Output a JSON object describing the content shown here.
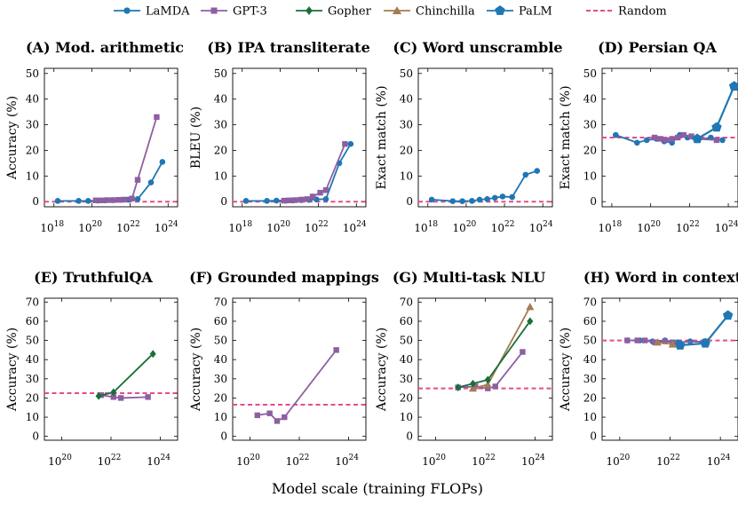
{
  "figure": {
    "xlabel": "Model scale (training FLOPs)",
    "colors": {
      "LaMDA": "#1f77b4",
      "GPT-3": "#8e5ea2",
      "Gopher": "#1a6e3a",
      "Chinchilla": "#a67c52",
      "PaLM": "#1f77b4",
      "Random": "#e84a8a"
    },
    "legend": [
      {
        "name": "LaMDA",
        "marker": "circle"
      },
      {
        "name": "GPT-3",
        "marker": "square"
      },
      {
        "name": "Gopher",
        "marker": "diamond"
      },
      {
        "name": "Chinchilla",
        "marker": "triangle"
      },
      {
        "name": "PaLM",
        "marker": "pentagon"
      },
      {
        "name": "Random",
        "marker": "dash"
      }
    ]
  },
  "chart_data": [
    {
      "type": "line",
      "title": "(A) Mod. arithmetic",
      "ylabel": "Accuracy (%)",
      "xlog": true,
      "xlim": [
        17.5,
        24.5
      ],
      "xticks": [
        18,
        20,
        22,
        24
      ],
      "xtick_labels": [
        "10",
        "10",
        "10",
        "10"
      ],
      "xtick_exps": [
        "18",
        "20",
        "22",
        "24"
      ],
      "ylim": [
        -2,
        52
      ],
      "yticks": [
        0,
        10,
        20,
        30,
        40,
        50
      ],
      "ytick_labels": [
        "0",
        "10",
        "20",
        "30",
        "40",
        "50"
      ],
      "random": 0,
      "series": [
        {
          "name": "LaMDA",
          "x_log10": [
            18.2,
            19.3,
            19.8,
            20.3,
            20.7,
            21.1,
            21.5,
            21.9,
            22.4,
            23.1,
            23.7
          ],
          "y": [
            0.3,
            0.3,
            0.3,
            0.4,
            0.5,
            0.6,
            0.7,
            0.8,
            1.0,
            7.5,
            15.5
          ]
        },
        {
          "name": "GPT-3",
          "x_log10": [
            20.2,
            20.5,
            20.8,
            21.1,
            21.4,
            21.7,
            22.1,
            22.4,
            23.4
          ],
          "y": [
            0.5,
            0.5,
            0.6,
            0.6,
            0.7,
            0.8,
            1.2,
            8.5,
            33
          ]
        }
      ]
    },
    {
      "type": "line",
      "title": "(B) IPA transliterate",
      "ylabel": "BLEU (%)",
      "xlog": true,
      "xlim": [
        17.5,
        24.5
      ],
      "xticks": [
        18,
        20,
        22,
        24
      ],
      "xtick_labels": [
        "10",
        "10",
        "10",
        "10"
      ],
      "xtick_exps": [
        "18",
        "20",
        "22",
        "24"
      ],
      "ylim": [
        -2,
        52
      ],
      "yticks": [
        0,
        10,
        20,
        30,
        40,
        50
      ],
      "ytick_labels": [
        "0",
        "10",
        "20",
        "30",
        "40",
        "50"
      ],
      "random": 0,
      "series": [
        {
          "name": "LaMDA",
          "x_log10": [
            18.2,
            19.3,
            19.8,
            20.3,
            20.7,
            21.1,
            21.5,
            21.9,
            22.4,
            23.1,
            23.7
          ],
          "y": [
            0.3,
            0.3,
            0.4,
            0.4,
            0.5,
            0.6,
            0.7,
            0.9,
            1.0,
            15.0,
            22.5
          ]
        },
        {
          "name": "GPT-3",
          "x_log10": [
            20.2,
            20.5,
            20.8,
            21.1,
            21.4,
            21.7,
            22.1,
            22.4,
            23.4
          ],
          "y": [
            0.4,
            0.5,
            0.6,
            0.8,
            1.0,
            2.0,
            3.5,
            4.5,
            22.5
          ]
        }
      ]
    },
    {
      "type": "line",
      "title": "(C) Word unscramble",
      "ylabel": "Exact match (%)",
      "xlog": true,
      "xlim": [
        17.5,
        24.5
      ],
      "xticks": [
        18,
        20,
        22,
        24
      ],
      "xtick_labels": [
        "10",
        "10",
        "10",
        "10"
      ],
      "xtick_exps": [
        "18",
        "20",
        "22",
        "24"
      ],
      "ylim": [
        -2,
        52
      ],
      "yticks": [
        0,
        10,
        20,
        30,
        40,
        50
      ],
      "ytick_labels": [
        "0",
        "10",
        "20",
        "30",
        "40",
        "50"
      ],
      "random": 0,
      "series": [
        {
          "name": "LaMDA",
          "x_log10": [
            18.2,
            19.3,
            19.8,
            20.3,
            20.7,
            21.1,
            21.5,
            21.9,
            22.4,
            23.1,
            23.7
          ],
          "y": [
            0.8,
            0.2,
            0.2,
            0.3,
            0.8,
            1.0,
            1.5,
            2.0,
            1.8,
            10.5,
            12.0
          ]
        }
      ]
    },
    {
      "type": "line",
      "title": "(D) Persian QA",
      "ylabel": "Exact match (%)",
      "xlog": true,
      "xlim": [
        17.5,
        24.5
      ],
      "xticks": [
        18,
        20,
        22,
        24
      ],
      "xtick_labels": [
        "10",
        "10",
        "10",
        "10"
      ],
      "xtick_exps": [
        "18",
        "20",
        "22",
        "24"
      ],
      "ylim": [
        -2,
        52
      ],
      "yticks": [
        0,
        10,
        20,
        30,
        40,
        50
      ],
      "ytick_labels": [
        "0",
        "10",
        "20",
        "30",
        "40",
        "50"
      ],
      "random": 25,
      "series": [
        {
          "name": "LaMDA",
          "x_log10": [
            18.2,
            19.3,
            19.8,
            20.3,
            20.7,
            21.1,
            21.5,
            21.9,
            22.4,
            23.1,
            23.7
          ],
          "y": [
            26.0,
            23.0,
            24.0,
            24.5,
            23.5,
            23.0,
            26.0,
            25.0,
            24.0,
            25.0,
            24.0
          ]
        },
        {
          "name": "GPT-3",
          "x_log10": [
            20.2,
            20.5,
            20.8,
            21.1,
            21.4,
            21.7,
            22.1,
            22.4,
            23.4
          ],
          "y": [
            25.0,
            24.5,
            24.0,
            24.5,
            25.0,
            26.0,
            25.5,
            24.5,
            24.0
          ]
        },
        {
          "name": "PaLM",
          "x_log10": [
            22.4,
            23.4,
            24.3
          ],
          "y": [
            24.5,
            29.0,
            45.0
          ]
        }
      ]
    },
    {
      "type": "line",
      "title": "(E) TruthfulQA",
      "ylabel": "Accuracy (%)",
      "xlog": true,
      "xlim": [
        19.3,
        24.7
      ],
      "xticks": [
        20,
        22,
        24
      ],
      "xtick_labels": [
        "10",
        "10",
        "10"
      ],
      "xtick_exps": [
        "20",
        "22",
        "24"
      ],
      "ylim": [
        -2,
        72
      ],
      "yticks": [
        0,
        10,
        20,
        30,
        40,
        50,
        60,
        70
      ],
      "ytick_labels": [
        "0",
        "10",
        "20",
        "30",
        "40",
        "50",
        "60",
        "70"
      ],
      "random": 22.5,
      "series": [
        {
          "name": "GPT-3",
          "x_log10": [
            21.6,
            22.1,
            22.4,
            23.5
          ],
          "y": [
            21.5,
            20.5,
            20.0,
            20.5
          ]
        },
        {
          "name": "Gopher",
          "x_log10": [
            21.5,
            22.1,
            23.7
          ],
          "y": [
            21.0,
            23.0,
            43.0
          ]
        }
      ]
    },
    {
      "type": "line",
      "title": "(F) Grounded mappings",
      "ylabel": "Accuracy (%)",
      "xlog": true,
      "xlim": [
        19.3,
        24.7
      ],
      "xticks": [
        20,
        22,
        24
      ],
      "xtick_labels": [
        "10",
        "10",
        "10"
      ],
      "xtick_exps": [
        "20",
        "22",
        "24"
      ],
      "ylim": [
        -2,
        72
      ],
      "yticks": [
        0,
        10,
        20,
        30,
        40,
        50,
        60,
        70
      ],
      "ytick_labels": [
        "0",
        "10",
        "20",
        "30",
        "40",
        "50",
        "60",
        "70"
      ],
      "random": 16.5,
      "series": [
        {
          "name": "GPT-3",
          "x_log10": [
            20.3,
            20.8,
            21.1,
            21.4,
            23.5
          ],
          "y": [
            11.0,
            12.0,
            8.0,
            10.0,
            45.0
          ]
        }
      ]
    },
    {
      "type": "line",
      "title": "(G) Multi-task NLU",
      "ylabel": "Accuracy (%)",
      "xlog": true,
      "xlim": [
        19.3,
        24.7
      ],
      "xticks": [
        20,
        22,
        24
      ],
      "xtick_labels": [
        "10",
        "10",
        "10"
      ],
      "xtick_exps": [
        "20",
        "22",
        "24"
      ],
      "ylim": [
        -2,
        72
      ],
      "yticks": [
        0,
        10,
        20,
        30,
        40,
        50,
        60,
        70
      ],
      "ytick_labels": [
        "0",
        "10",
        "20",
        "30",
        "40",
        "50",
        "60",
        "70"
      ],
      "random": 25,
      "series": [
        {
          "name": "GPT-3",
          "x_log10": [
            20.9,
            21.6,
            22.1,
            22.4,
            23.5
          ],
          "y": [
            25.5,
            26.0,
            25.0,
            26.0,
            44.0
          ]
        },
        {
          "name": "Chinchilla",
          "x_log10": [
            21.5,
            22.1,
            23.8
          ],
          "y": [
            25.0,
            27.0,
            67.5
          ]
        },
        {
          "name": "Gopher",
          "x_log10": [
            20.9,
            21.5,
            22.1,
            23.8
          ],
          "y": [
            25.5,
            27.5,
            29.5,
            60.0
          ]
        }
      ]
    },
    {
      "type": "line",
      "title": "(H) Word in context",
      "ylabel": "Accuracy (%)",
      "xlog": true,
      "xlim": [
        19.3,
        24.7
      ],
      "xticks": [
        20,
        22,
        24
      ],
      "xtick_labels": [
        "10",
        "10",
        "10"
      ],
      "xtick_exps": [
        "20",
        "22",
        "24"
      ],
      "ylim": [
        -2,
        72
      ],
      "yticks": [
        0,
        10,
        20,
        30,
        40,
        50,
        60,
        70
      ],
      "ytick_labels": [
        "0",
        "10",
        "20",
        "30",
        "40",
        "50",
        "60",
        "70"
      ],
      "random": 50,
      "series": [
        {
          "name": "LaMDA",
          "x_log10": [
            20.3,
            20.8,
            21.3,
            21.8,
            22.3,
            22.8,
            23.4
          ],
          "y": [
            50.0,
            50.0,
            49.5,
            50.0,
            49.0,
            49.5,
            49.0
          ]
        },
        {
          "name": "GPT-3",
          "x_log10": [
            20.3,
            20.7,
            21.0,
            21.4,
            21.8,
            22.1,
            23.4
          ],
          "y": [
            50.0,
            50.0,
            50.0,
            49.0,
            49.5,
            49.0,
            49.5
          ]
        },
        {
          "name": "Chinchilla",
          "x_log10": [
            21.5,
            22.1
          ],
          "y": [
            49.0,
            48.0
          ]
        },
        {
          "name": "PaLM",
          "x_log10": [
            22.4,
            23.4,
            24.3
          ],
          "y": [
            47.5,
            48.5,
            63.0
          ]
        }
      ]
    }
  ]
}
